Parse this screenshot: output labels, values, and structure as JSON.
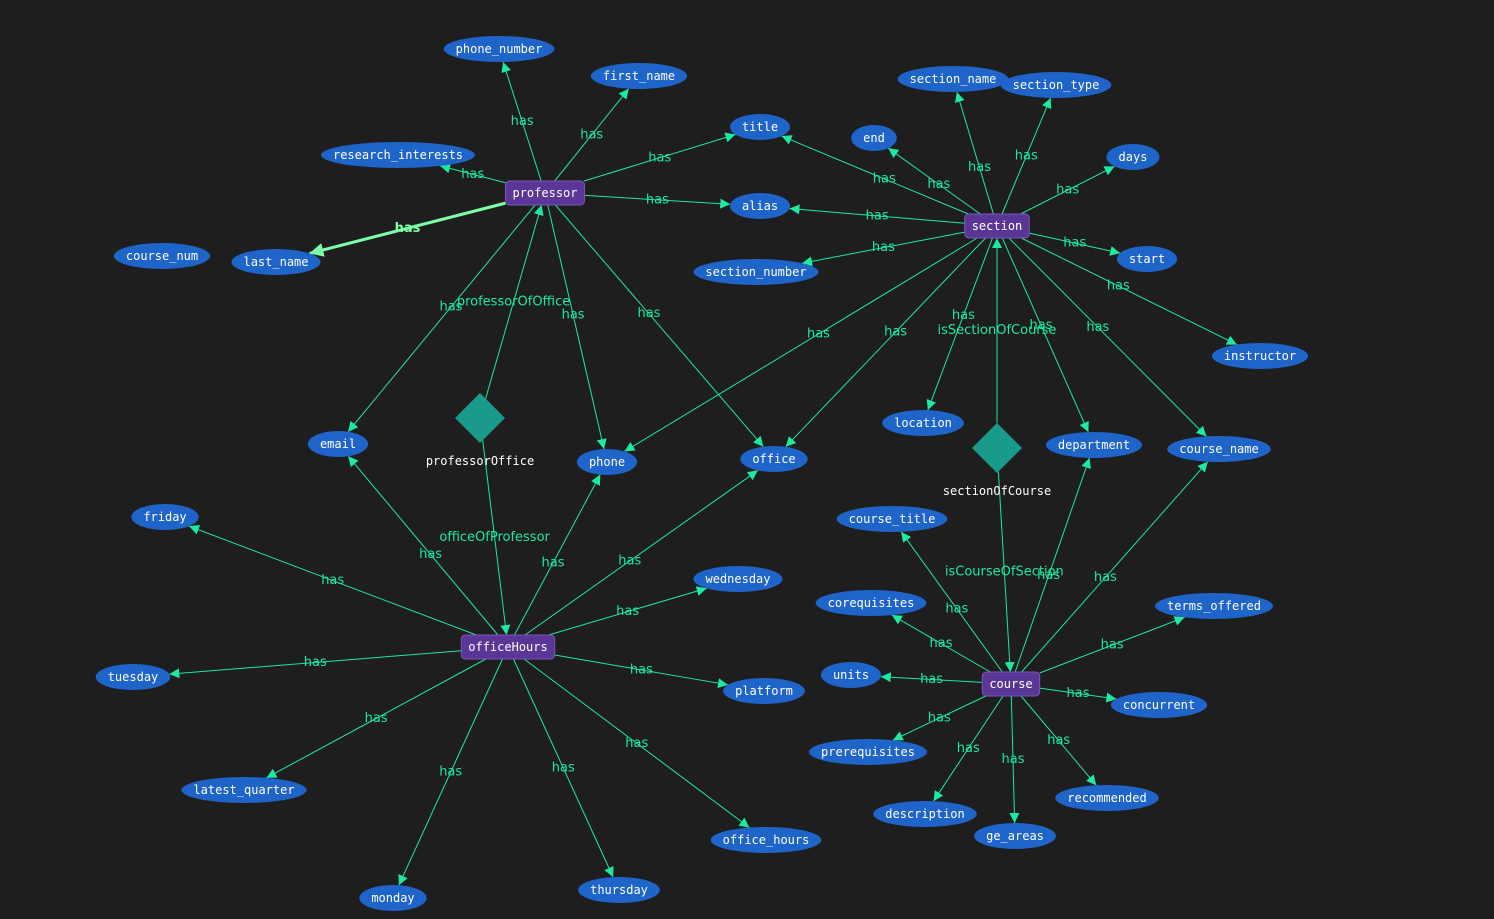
{
  "entities": [
    {
      "id": "professor",
      "label": "professor"
    },
    {
      "id": "section",
      "label": "section"
    },
    {
      "id": "officeHours",
      "label": "officeHours"
    },
    {
      "id": "course",
      "label": "course"
    }
  ],
  "relations": [
    {
      "id": "professorOffice",
      "label": "professorOffice"
    },
    {
      "id": "sectionOfCourse",
      "label": "sectionOfCourse"
    }
  ],
  "attributes": [
    {
      "id": "phone_number",
      "label": "phone_number"
    },
    {
      "id": "first_name",
      "label": "first_name"
    },
    {
      "id": "research_interests",
      "label": "research_interests"
    },
    {
      "id": "last_name",
      "label": "last_name"
    },
    {
      "id": "course_num",
      "label": "course_num"
    },
    {
      "id": "title",
      "label": "title"
    },
    {
      "id": "alias",
      "label": "alias"
    },
    {
      "id": "email",
      "label": "email"
    },
    {
      "id": "phone",
      "label": "phone"
    },
    {
      "id": "office",
      "label": "office"
    },
    {
      "id": "section_name",
      "label": "section_name"
    },
    {
      "id": "section_type",
      "label": "section_type"
    },
    {
      "id": "end",
      "label": "end"
    },
    {
      "id": "days",
      "label": "days"
    },
    {
      "id": "section_number",
      "label": "section_number"
    },
    {
      "id": "start",
      "label": "start"
    },
    {
      "id": "instructor",
      "label": "instructor"
    },
    {
      "id": "location",
      "label": "location"
    },
    {
      "id": "department",
      "label": "department"
    },
    {
      "id": "course_name",
      "label": "course_name"
    },
    {
      "id": "friday",
      "label": "friday"
    },
    {
      "id": "wednesday",
      "label": "wednesday"
    },
    {
      "id": "tuesday",
      "label": "tuesday"
    },
    {
      "id": "platform",
      "label": "platform"
    },
    {
      "id": "latest_quarter",
      "label": "latest_quarter"
    },
    {
      "id": "office_hours",
      "label": "office_hours"
    },
    {
      "id": "monday",
      "label": "monday"
    },
    {
      "id": "thursday",
      "label": "thursday"
    },
    {
      "id": "course_title",
      "label": "course_title"
    },
    {
      "id": "corequisites",
      "label": "corequisites"
    },
    {
      "id": "terms_offered",
      "label": "terms_offered"
    },
    {
      "id": "units",
      "label": "units"
    },
    {
      "id": "concurrent",
      "label": "concurrent"
    },
    {
      "id": "prerequisites",
      "label": "prerequisites"
    },
    {
      "id": "description",
      "label": "description"
    },
    {
      "id": "ge_areas",
      "label": "ge_areas"
    },
    {
      "id": "recommended",
      "label": "recommended"
    }
  ],
  "edges": [
    {
      "from": "professor",
      "to": "phone_number",
      "label": "has"
    },
    {
      "from": "professor",
      "to": "first_name",
      "label": "has"
    },
    {
      "from": "professor",
      "to": "research_interests",
      "label": "has"
    },
    {
      "from": "professor",
      "to": "title",
      "label": "has"
    },
    {
      "from": "professor",
      "to": "alias",
      "label": "has"
    },
    {
      "from": "professor",
      "to": "last_name",
      "label": "has",
      "highlight": true
    },
    {
      "from": "professor",
      "to": "email",
      "label": "has"
    },
    {
      "from": "professor",
      "to": "phone",
      "label": "has"
    },
    {
      "from": "professor",
      "to": "office",
      "label": "has"
    },
    {
      "from": "professorOffice",
      "to": "professor",
      "label": "professorOfOffice"
    },
    {
      "from": "professorOffice",
      "to": "officeHours",
      "label": "officeOfProfessor"
    },
    {
      "from": "section",
      "to": "section_name",
      "label": "has"
    },
    {
      "from": "section",
      "to": "section_type",
      "label": "has"
    },
    {
      "from": "section",
      "to": "end",
      "label": "has"
    },
    {
      "from": "section",
      "to": "days",
      "label": "has"
    },
    {
      "from": "section",
      "to": "title",
      "label": "has"
    },
    {
      "from": "section",
      "to": "alias",
      "label": "has"
    },
    {
      "from": "section",
      "to": "section_number",
      "label": "has"
    },
    {
      "from": "section",
      "to": "start",
      "label": "has"
    },
    {
      "from": "section",
      "to": "instructor",
      "label": "has"
    },
    {
      "from": "section",
      "to": "phone",
      "label": "has"
    },
    {
      "from": "section",
      "to": "office",
      "label": "has"
    },
    {
      "from": "section",
      "to": "location",
      "label": "has"
    },
    {
      "from": "section",
      "to": "department",
      "label": "has"
    },
    {
      "from": "section",
      "to": "course_name",
      "label": "has"
    },
    {
      "from": "sectionOfCourse",
      "to": "section",
      "label": "isSectionOfCourse"
    },
    {
      "from": "sectionOfCourse",
      "to": "course",
      "label": "isCourseOfSection"
    },
    {
      "from": "officeHours",
      "to": "email",
      "label": "has"
    },
    {
      "from": "officeHours",
      "to": "phone",
      "label": "has"
    },
    {
      "from": "officeHours",
      "to": "office",
      "label": "has"
    },
    {
      "from": "officeHours",
      "to": "friday",
      "label": "has"
    },
    {
      "from": "officeHours",
      "to": "wednesday",
      "label": "has"
    },
    {
      "from": "officeHours",
      "to": "tuesday",
      "label": "has"
    },
    {
      "from": "officeHours",
      "to": "platform",
      "label": "has"
    },
    {
      "from": "officeHours",
      "to": "latest_quarter",
      "label": "has"
    },
    {
      "from": "officeHours",
      "to": "office_hours",
      "label": "has"
    },
    {
      "from": "officeHours",
      "to": "monday",
      "label": "has"
    },
    {
      "from": "officeHours",
      "to": "thursday",
      "label": "has"
    },
    {
      "from": "course",
      "to": "course_title",
      "label": "has"
    },
    {
      "from": "course",
      "to": "corequisites",
      "label": "has"
    },
    {
      "from": "course",
      "to": "terms_offered",
      "label": "has"
    },
    {
      "from": "course",
      "to": "units",
      "label": "has"
    },
    {
      "from": "course",
      "to": "concurrent",
      "label": "has"
    },
    {
      "from": "course",
      "to": "prerequisites",
      "label": "has"
    },
    {
      "from": "course",
      "to": "description",
      "label": "has"
    },
    {
      "from": "course",
      "to": "ge_areas",
      "label": "has"
    },
    {
      "from": "course",
      "to": "recommended",
      "label": "has"
    },
    {
      "from": "course",
      "to": "department",
      "label": "has"
    },
    {
      "from": "course",
      "to": "course_name",
      "label": "has"
    }
  ]
}
